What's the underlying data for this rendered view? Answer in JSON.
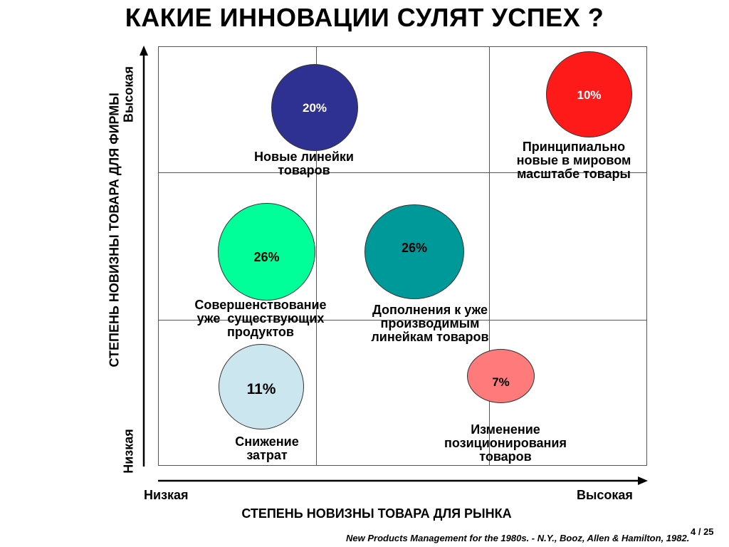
{
  "title": "КАКИЕ ИННОВАЦИИ СУЛЯТ УСПЕХ ?",
  "y_axis": {
    "title": "СТЕПЕНЬ НОВИЗНЫ ТОВАРА ДЛЯ ФИРМЫ",
    "high": "Высокая",
    "low": "Низкая"
  },
  "x_axis": {
    "title": "СТЕПЕНЬ НОВИЗНЫ ТОВАРА ДЛЯ РЫНКА",
    "low": "Низкая",
    "high": "Высокая"
  },
  "bubbles": [
    {
      "value": "20%",
      "label_lines": [
        "Новые линейки",
        "товаров"
      ],
      "color": "#2e3192"
    },
    {
      "value": "10%",
      "label_lines": [
        "Принципиально",
        "новые в мировом",
        "масштабе товары"
      ],
      "color": "#ff1a1a"
    },
    {
      "value": "26%",
      "label_lines": [
        "Совершенствование",
        "уже  существующих",
        "продуктов"
      ],
      "color": "#00ff99"
    },
    {
      "value": "26%",
      "label_lines": [
        "Дополнения к уже",
        "производимым",
        "линейкам товаров"
      ],
      "color": "#009999"
    },
    {
      "value": "11%",
      "label_lines": [
        "Снижение",
        "затрат"
      ],
      "color": "#cce6f0"
    },
    {
      "value": "7%",
      "label_lines": [
        "Изменение",
        "позиционирования",
        "товаров"
      ],
      "color": "#ff7a7a"
    }
  ],
  "source": "New Products Management for the 1980s. - N.Y., Booz, Allen & Hamilton, 1982.",
  "page": "4 / 25"
}
